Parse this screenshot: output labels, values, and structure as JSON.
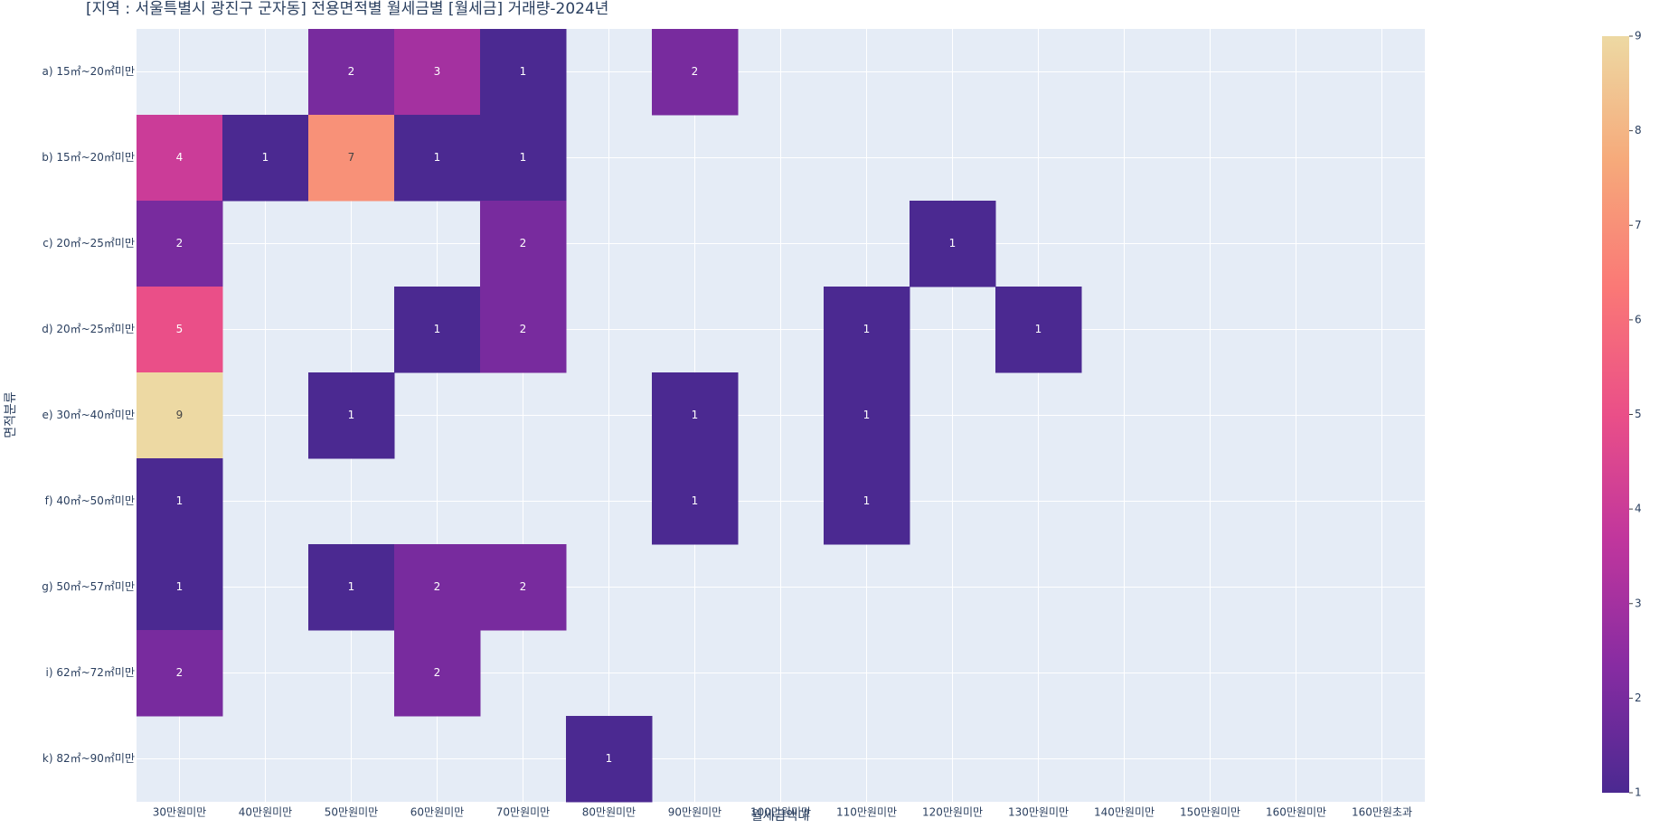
{
  "chart_data": {
    "type": "heatmap",
    "title": "[지역 : 서울특별시 광진구 군자동] 전용면적별 월세금별 [월세금] 거래량-2024년",
    "x_label": "월세금액대",
    "y_label": "면적분류",
    "x": [
      "30만원미만",
      "40만원미만",
      "50만원미만",
      "60만원미만",
      "70만원미만",
      "80만원미만",
      "90만원미만",
      "100만원미만",
      "110만원미만",
      "120만원미만",
      "130만원미만",
      "140만원미만",
      "150만원미만",
      "160만원미만",
      "160만원초과"
    ],
    "y": [
      "a) 15㎡~20㎡미만",
      "b) 15㎡~20㎡미만",
      "c) 20㎡~25㎡미만",
      "d) 20㎡~25㎡미만",
      "e) 30㎡~40㎡미만",
      "f) 40㎡~50㎡미만",
      "g) 50㎡~57㎡미만",
      "i) 62㎡~72㎡미만",
      "k) 82㎡~90㎡미만"
    ],
    "z": [
      [
        null,
        null,
        2,
        3,
        1,
        null,
        2,
        null,
        null,
        null,
        null,
        null,
        null,
        null,
        null
      ],
      [
        4,
        1,
        7,
        1,
        1,
        null,
        null,
        null,
        null,
        null,
        null,
        null,
        null,
        null,
        null
      ],
      [
        2,
        null,
        null,
        null,
        2,
        null,
        null,
        null,
        null,
        1,
        null,
        null,
        null,
        null,
        null
      ],
      [
        5,
        null,
        null,
        1,
        2,
        null,
        null,
        null,
        1,
        null,
        1,
        null,
        null,
        null,
        null
      ],
      [
        9,
        null,
        1,
        null,
        null,
        null,
        1,
        null,
        1,
        null,
        null,
        null,
        null,
        null,
        null
      ],
      [
        1,
        null,
        null,
        null,
        null,
        null,
        1,
        null,
        1,
        null,
        null,
        null,
        null,
        null,
        null
      ],
      [
        1,
        null,
        1,
        2,
        2,
        null,
        null,
        null,
        null,
        null,
        null,
        null,
        null,
        null,
        null
      ],
      [
        2,
        null,
        null,
        2,
        null,
        null,
        null,
        null,
        null,
        null,
        null,
        null,
        null,
        null,
        null
      ],
      [
        null,
        null,
        null,
        null,
        null,
        1,
        null,
        null,
        null,
        null,
        null,
        null,
        null,
        null,
        null
      ]
    ],
    "zlim": [
      1,
      9
    ],
    "zticks": [
      1,
      2,
      3,
      4,
      5,
      6,
      7,
      8,
      9
    ],
    "colorscale": [
      "#4b2991",
      "#872ca2",
      "#c0369d",
      "#ea4f88",
      "#fa7876",
      "#f6a97a",
      "#edd9a3"
    ],
    "background": "#e5ecf6",
    "grid": true
  }
}
